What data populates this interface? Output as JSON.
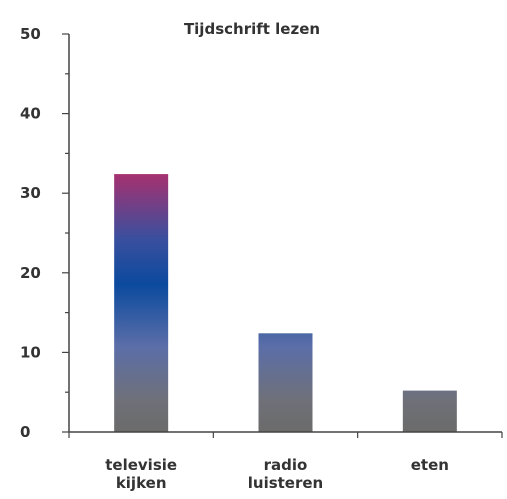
{
  "chart_data": {
    "type": "bar",
    "title": "Tijdschrift lezen",
    "categories": [
      [
        "televisie",
        "kijken"
      ],
      [
        "radio",
        "luisteren"
      ],
      [
        "eten"
      ]
    ],
    "values": [
      32.4,
      12.4,
      5.2
    ],
    "xlabel": "",
    "ylabel": "",
    "ylim": [
      0,
      50
    ],
    "yticks": [
      "0",
      "10",
      "20",
      "30",
      "40",
      "50"
    ],
    "grid": false,
    "legend": "none",
    "colors": {
      "bar_bottom": "#6b6b6b",
      "bar_mid": "#5b6ea8",
      "bar_blue": "#0b4a9e",
      "bar_top": "#a8306e",
      "axis": "#444444"
    }
  }
}
